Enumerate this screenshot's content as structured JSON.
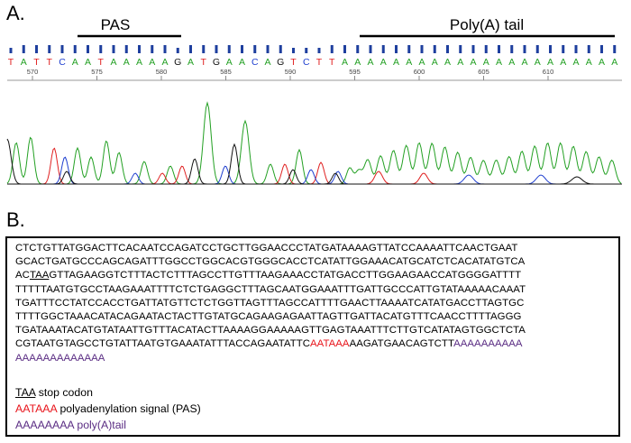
{
  "panel_a": {
    "label": "A.",
    "pas_label": "PAS",
    "polya_label": "Poly(A) tail",
    "bases": [
      "T",
      "A",
      "T",
      "T",
      "C",
      "A",
      "A",
      "T",
      "A",
      "A",
      "A",
      "A",
      "A",
      "G",
      "A",
      "T",
      "G",
      "A",
      "A",
      "C",
      "A",
      "G",
      "T",
      "C",
      "T",
      "T",
      "A",
      "A",
      "A",
      "A",
      "A",
      "A",
      "A",
      "A",
      "A",
      "A",
      "A",
      "A",
      "A",
      "A",
      "A",
      "A",
      "A",
      "A",
      "A",
      "A",
      "A",
      "A"
    ],
    "positions": [
      "570",
      "575",
      "580",
      "585",
      "590",
      "595",
      "600",
      "605",
      "610"
    ],
    "colors": {
      "A": "#23a023",
      "C": "#1f3fcf",
      "G": "#111111",
      "T": "#e02020",
      "N": "#d6c400",
      "bar": "#1e3f9e"
    }
  },
  "panel_b": {
    "label": "B.",
    "sequence_lines": [
      "CTCTGTTATGGACTTCACAATCCAGATCCTGCTTGGAACCCTATGATAAAAGTTATCCAAAATTCAACTGAAT",
      "GCACTGATGCCCAGCAGATTTGGCCTGGCACGTGGGCACCTCATATTGGAAACATGCATCTCACATATGTCA",
      "AC|TAA|GTTAGAAGGTCTTTACTCTTTAGCCTTGTTTAAGAAACCTATGACCTTGGAAGAACCATGGGGATTTT",
      "TTTTTAATGTGCCTAAGAAATTTTCTCTGAGGCTTTAGCAATGGAAATTTGATTGCCCATTGTATAAAAACAAAT",
      "TGATTTCCTATCCACCTGATTATGTTCTCTGGTTAGTTTAGCCATTTTGAACTTAAAATCATATGACCTTAGTGC",
      "TTTTGGCTAAACATACAGAATACTACTTGTATGCAGAAGAGAATTAGTTGATTACATGTTTCAACCTTTTAGGG",
      "TGATAAATACATGTATAATTGTTTACATACTTAAAAGGAAAAAGTTGAGTAAATTTCTTGTCATATAGTGGCTCTA",
      "CGTAATGTAGCCTGTATTAATGTGAAATATTTACCAGAATATTC"
    ],
    "stop_codon": "TAA",
    "line3_prefix": "AC",
    "line3_suffix": "GTTAGAAGGTCTTTACTCTTTAGCCTTGTTTAAGAAACCTATGACCTTGGAAGAACCATGGGGATTTT",
    "line8_prefix": "CGTAATGTAGCCTGTATTAATGTGAAATATTTACCAGAATATTC",
    "pas_seq": "AATAAA",
    "line8_middle": "AAGATGAACAGTCTT",
    "polya_line8": "AAAAAAAAAA",
    "polya_line9": "AAAAAAAAAAAAA",
    "legend": {
      "stop_seq": "TAA",
      "stop_text": " stop codon",
      "pas_seq": "AATAAA",
      "pas_text": " polyadenylation signal (PAS)",
      "polya_seq": "AAAAAAAA",
      "polya_text": " poly(A)tail"
    }
  }
}
